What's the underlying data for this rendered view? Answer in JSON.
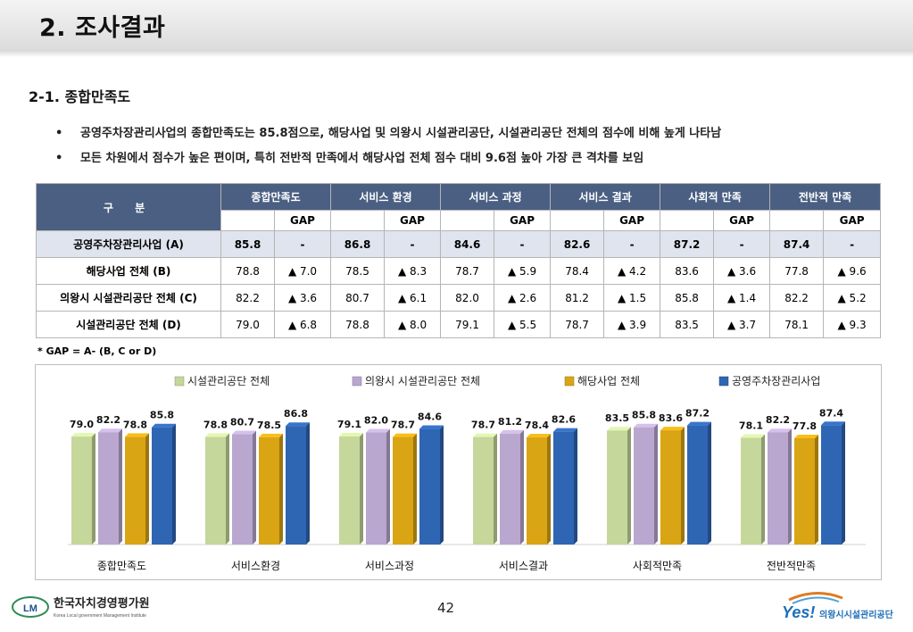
{
  "header": {
    "title": "2. 조사결과"
  },
  "section": {
    "title": "2-1. 종합만족도"
  },
  "bullets": [
    "공영주차장관리사업의 종합만족도는 85.8점으로, 해당사업 및 의왕시 시설관리공단, 시설관리공단 전체의 점수에 비해 높게 나타남",
    "모든 차원에서 점수가 높은 편이며, 특히 전반적 만족에서 해당사업 전체 점수 대비 9.6점 높아 가장 큰 격차를 보임"
  ],
  "table": {
    "corner": "구 분",
    "columns": [
      "종합만족도",
      "서비스 환경",
      "서비스 과정",
      "서비스 결과",
      "사회적 만족",
      "전반적 만족"
    ],
    "gap_label": "GAP",
    "rows": [
      {
        "label": "공영주차장관리사업 (A)",
        "cells": [
          "85.8",
          "-",
          "86.8",
          "-",
          "84.6",
          "-",
          "82.6",
          "-",
          "87.2",
          "-",
          "87.4",
          "-"
        ]
      },
      {
        "label": "해당사업 전체 (B)",
        "cells": [
          "78.8",
          "▲ 7.0",
          "78.5",
          "▲ 8.3",
          "78.7",
          "▲ 5.9",
          "78.4",
          "▲ 4.2",
          "83.6",
          "▲ 3.6",
          "77.8",
          "▲ 9.6"
        ]
      },
      {
        "label": "의왕시 시설관리공단 전체 (C)",
        "cells": [
          "82.2",
          "▲ 3.6",
          "80.7",
          "▲ 6.1",
          "82.0",
          "▲ 2.6",
          "81.2",
          "▲ 1.5",
          "85.8",
          "▲ 1.4",
          "82.2",
          "▲ 5.2"
        ]
      },
      {
        "label": "시설관리공단 전체 (D)",
        "cells": [
          "79.0",
          "▲ 6.8",
          "78.8",
          "▲ 8.0",
          "79.1",
          "▲ 5.5",
          "78.7",
          "▲ 3.9",
          "83.5",
          "▲ 3.7",
          "78.1",
          "▲ 9.3"
        ]
      }
    ]
  },
  "note": "* GAP = A- (B, C or D)",
  "chart_data": {
    "type": "bar",
    "categories": [
      "종합만족도",
      "서비스환경",
      "서비스과정",
      "서비스결과",
      "사회적만족",
      "전반적만족"
    ],
    "series": [
      {
        "name": "시설관리공단 전체",
        "color": "#c5d79a",
        "values": [
          79.0,
          78.8,
          79.1,
          78.7,
          83.5,
          78.1
        ]
      },
      {
        "name": "의왕시 시설관리공단 전체",
        "color": "#b9a7cf",
        "values": [
          82.2,
          80.7,
          82.0,
          81.2,
          85.8,
          82.2
        ]
      },
      {
        "name": "해당사업 전체",
        "color": "#d9a514",
        "values": [
          78.8,
          78.5,
          78.7,
          78.4,
          83.6,
          77.8
        ]
      },
      {
        "name": "공영주차장관리사업",
        "color": "#2f66b3",
        "values": [
          85.8,
          86.8,
          84.6,
          82.6,
          87.2,
          87.4
        ]
      }
    ],
    "legend_position": "top",
    "grid": false,
    "ylim": [
      0,
      100
    ]
  },
  "footer": {
    "page_number": "42",
    "left_logo_text": "한국자치경영평가원",
    "left_logo_sub": "Korea Local government Management Institute",
    "left_logo_mark": "LM",
    "right_logo_mark": "Yes!",
    "right_logo_text": "의왕시시설관리공단"
  }
}
